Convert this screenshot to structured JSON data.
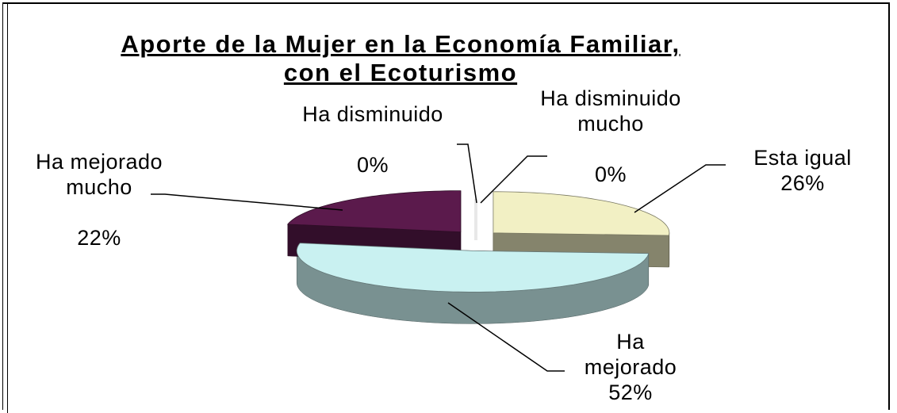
{
  "chart_data": {
    "type": "pie",
    "title": "Aporte de la Mujer en la Economía Familiar, con el Ecoturismo",
    "categories": [
      "Esta igual",
      "Ha mejorado",
      "Ha mejorado mucho",
      "Ha disminuido",
      "Ha disminuido mucho"
    ],
    "values": [
      26,
      52,
      22,
      0,
      0
    ],
    "value_labels": [
      "26%",
      "52%",
      "22%",
      "0%",
      "0%"
    ],
    "colors": [
      "#f2f0c4",
      "#c9f1f1",
      "#5b1a4c",
      "#c4c4c4",
      "#e8e8e8"
    ]
  }
}
